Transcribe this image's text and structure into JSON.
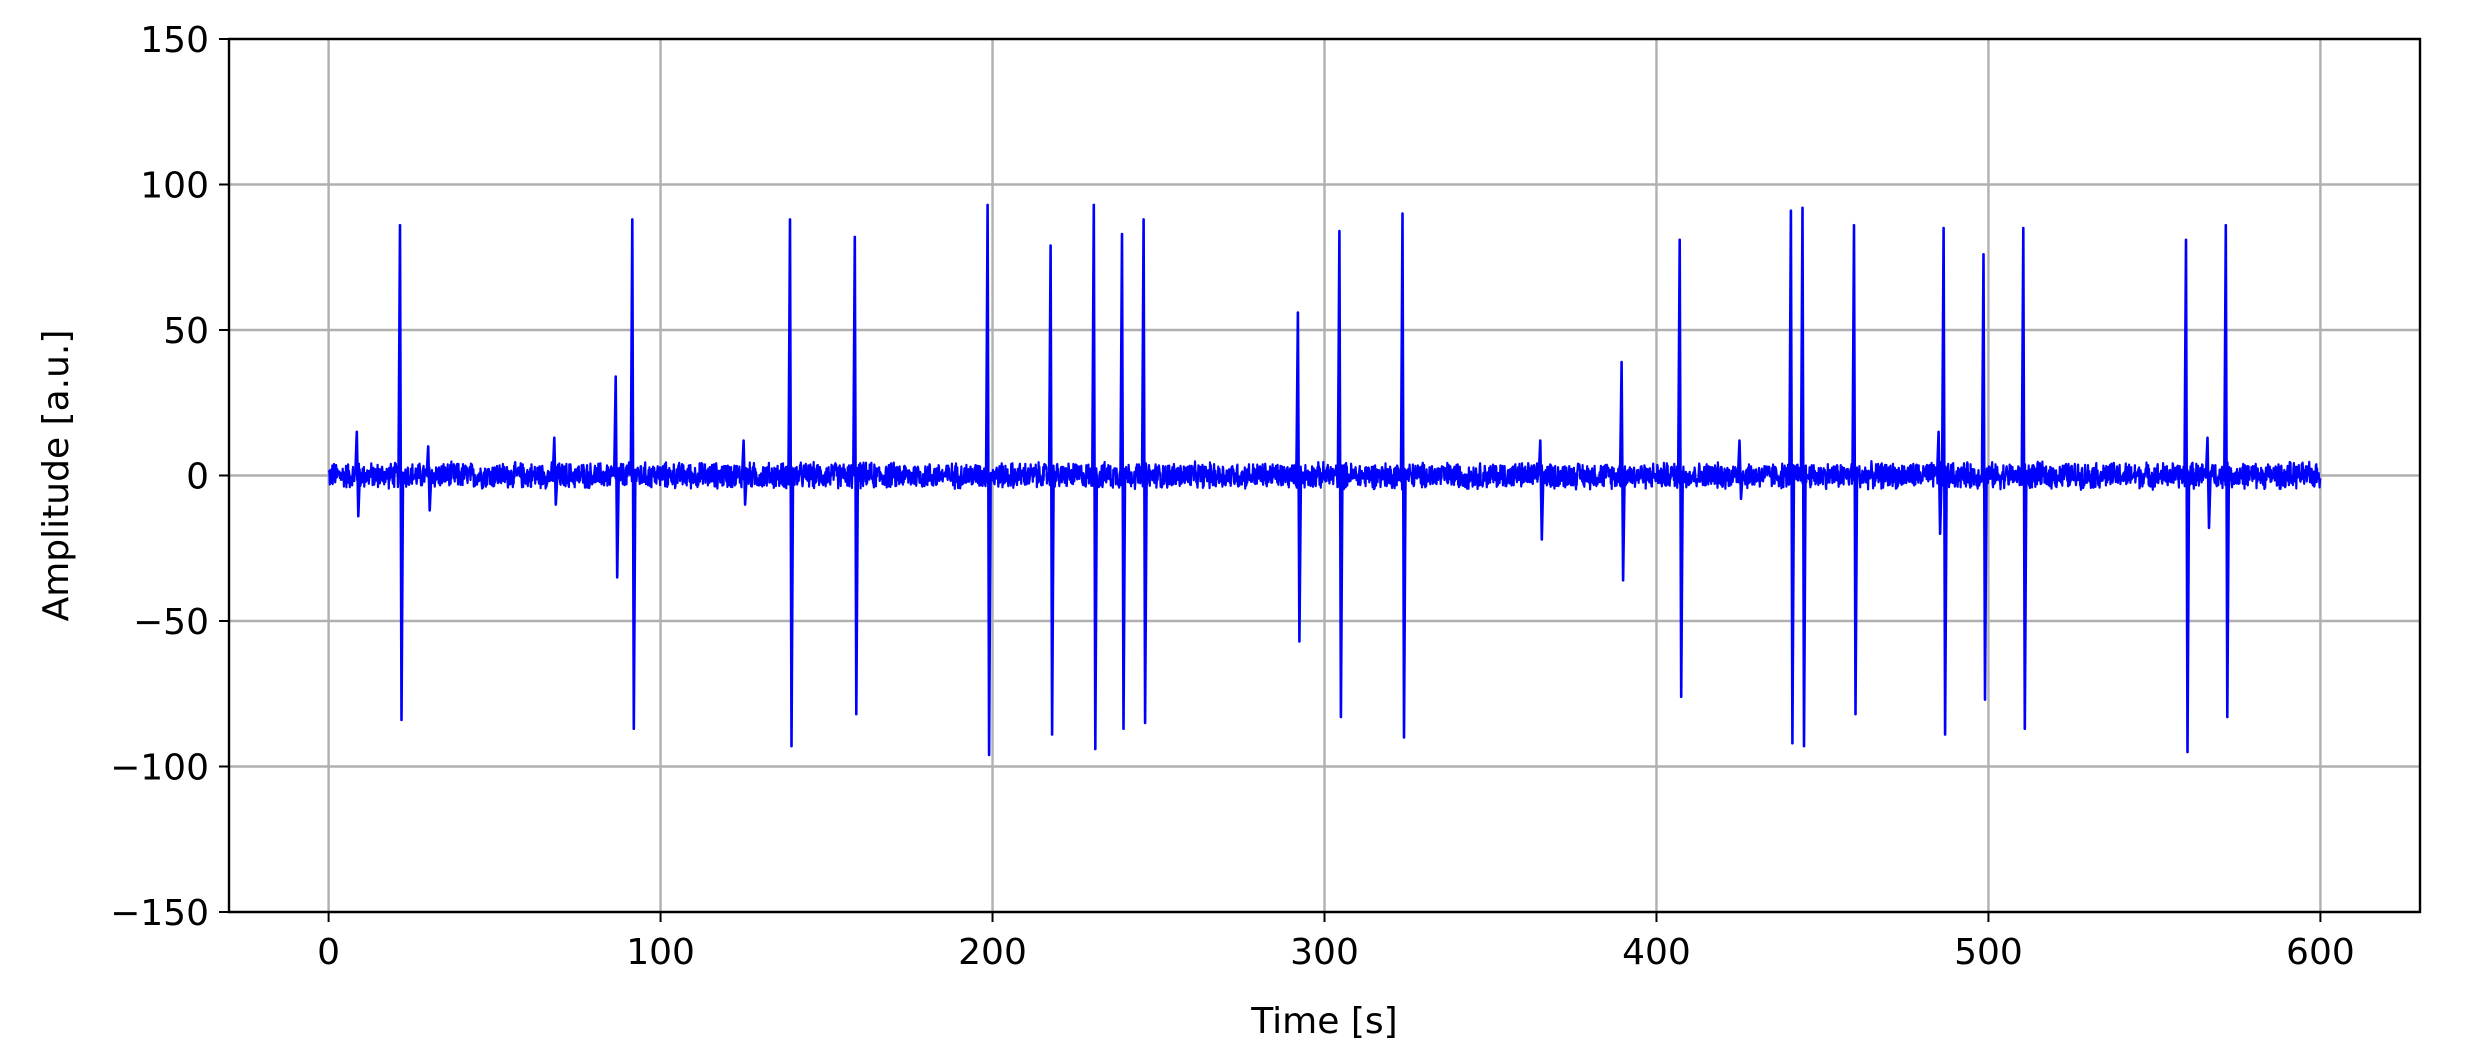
{
  "chart_data": {
    "type": "line",
    "title": "",
    "xlabel": "Time [s]",
    "ylabel": "Amplitude [a.u.]",
    "xlim": [
      -30,
      630
    ],
    "ylim": [
      -150,
      150
    ],
    "x_ticks": [
      0,
      100,
      200,
      300,
      400,
      500,
      600
    ],
    "y_ticks": [
      -150,
      -100,
      -50,
      0,
      50,
      100,
      150
    ],
    "x_tick_labels": [
      "0",
      "100",
      "200",
      "300",
      "400",
      "500",
      "600"
    ],
    "y_tick_labels": [
      "−150",
      "−100",
      "−50",
      "0",
      "50",
      "100",
      "150"
    ],
    "grid": true,
    "legend": "none",
    "series": [
      {
        "color": "#0000ff",
        "x_range": [
          0,
          600
        ],
        "baseline_noise_amplitude": 5,
        "spikes": [
          {
            "t": 8.5,
            "max": 15,
            "min": -14
          },
          {
            "t": 21.5,
            "max": 86,
            "min": -84
          },
          {
            "t": 30,
            "max": 10,
            "min": -12
          },
          {
            "t": 68,
            "max": 13,
            "min": -10
          },
          {
            "t": 86.5,
            "max": 34,
            "min": -35
          },
          {
            "t": 91.5,
            "max": 88,
            "min": -87
          },
          {
            "t": 125,
            "max": 12,
            "min": -10
          },
          {
            "t": 139,
            "max": 88,
            "min": -93
          },
          {
            "t": 158.5,
            "max": 82,
            "min": -82
          },
          {
            "t": 198.5,
            "max": 93,
            "min": -96
          },
          {
            "t": 217.5,
            "max": 79,
            "min": -89
          },
          {
            "t": 230.5,
            "max": 93,
            "min": -94
          },
          {
            "t": 239,
            "max": 83,
            "min": -87
          },
          {
            "t": 245.5,
            "max": 88,
            "min": -85
          },
          {
            "t": 292,
            "max": 56,
            "min": -57
          },
          {
            "t": 304.5,
            "max": 84,
            "min": -83
          },
          {
            "t": 323.5,
            "max": 90,
            "min": -90
          },
          {
            "t": 365,
            "max": 12,
            "min": -22
          },
          {
            "t": 389.5,
            "max": 39,
            "min": -36
          },
          {
            "t": 407,
            "max": 81,
            "min": -76
          },
          {
            "t": 425,
            "max": 12,
            "min": -8
          },
          {
            "t": 440.5,
            "max": 91,
            "min": -92
          },
          {
            "t": 444,
            "max": 92,
            "min": -93
          },
          {
            "t": 459.5,
            "max": 86,
            "min": -82
          },
          {
            "t": 485,
            "max": 15,
            "min": -20
          },
          {
            "t": 486.5,
            "max": 85,
            "min": -89
          },
          {
            "t": 498.5,
            "max": 76,
            "min": -77
          },
          {
            "t": 510.5,
            "max": 85,
            "min": -87
          },
          {
            "t": 559.5,
            "max": 81,
            "min": -95
          },
          {
            "t": 566,
            "max": 13,
            "min": -18
          },
          {
            "t": 571.5,
            "max": 86,
            "min": -83
          }
        ]
      }
    ]
  }
}
